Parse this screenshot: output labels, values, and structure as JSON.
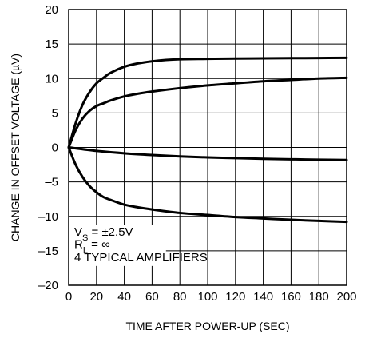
{
  "chart_data": {
    "type": "line",
    "title": "",
    "xlabel": "TIME AFTER POWER-UP (SEC)",
    "ylabel": "CHANGE IN OFFSET VOLTAGE (µV)",
    "xlim": [
      0,
      200
    ],
    "ylim": [
      -20,
      20
    ],
    "xticks": [
      0,
      20,
      40,
      60,
      80,
      100,
      120,
      140,
      160,
      180,
      200
    ],
    "yticks": [
      20,
      15,
      10,
      5,
      0,
      -5,
      -10,
      -15,
      -20
    ],
    "ytick_labels": [
      "20",
      "15",
      "10",
      "5",
      "0",
      "–5",
      "–10",
      "–15",
      "–20"
    ],
    "grid": true,
    "annotation": {
      "line1": "V",
      "line1_sub": "S",
      "line1_rest": " = ±2.5V",
      "line2": "R",
      "line2_sub": "L",
      "line2_rest": " = ∞",
      "line3": "4 TYPICAL AMPLIFIERS",
      "placement": "bottom-left"
    },
    "series": [
      {
        "x": [
          0,
          5,
          10,
          15,
          20,
          25,
          30,
          40,
          50,
          60,
          70,
          80,
          100,
          120,
          140,
          160,
          180,
          200
        ],
        "values": [
          0,
          3.5,
          6.2,
          8.0,
          9.3,
          10.1,
          10.8,
          11.7,
          12.2,
          12.5,
          12.7,
          12.8,
          12.85,
          12.9,
          12.92,
          12.95,
          12.97,
          13.0
        ]
      },
      {
        "x": [
          0,
          5,
          10,
          15,
          20,
          25,
          30,
          40,
          50,
          60,
          80,
          100,
          120,
          140,
          160,
          180,
          200
        ],
        "values": [
          0,
          2.5,
          4.2,
          5.3,
          6.0,
          6.4,
          6.8,
          7.4,
          7.8,
          8.1,
          8.6,
          9.0,
          9.3,
          9.6,
          9.8,
          10.0,
          10.1
        ]
      },
      {
        "x": [
          0,
          20,
          40,
          60,
          80,
          100,
          120,
          140,
          160,
          180,
          200
        ],
        "values": [
          0,
          -0.5,
          -0.85,
          -1.1,
          -1.3,
          -1.45,
          -1.55,
          -1.65,
          -1.72,
          -1.78,
          -1.82
        ]
      },
      {
        "x": [
          0,
          5,
          10,
          15,
          20,
          25,
          30,
          40,
          50,
          60,
          80,
          100,
          120,
          140,
          160,
          180,
          200
        ],
        "values": [
          0,
          -2.5,
          -4.3,
          -5.6,
          -6.5,
          -7.2,
          -7.6,
          -8.3,
          -8.7,
          -9.0,
          -9.5,
          -9.8,
          -10.1,
          -10.3,
          -10.5,
          -10.65,
          -10.8
        ]
      }
    ]
  }
}
